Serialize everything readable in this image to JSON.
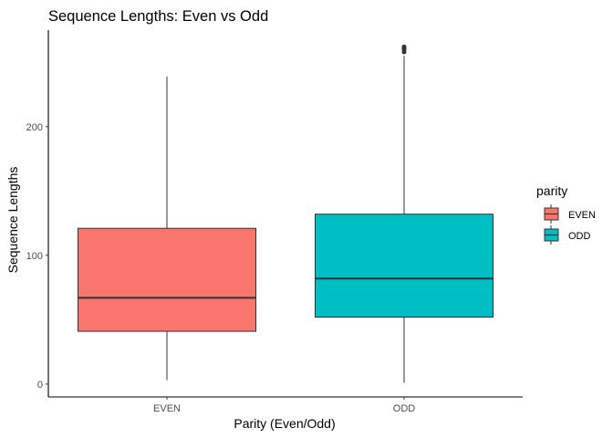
{
  "chart_data": {
    "type": "boxplot",
    "title": "Sequence Lengths: Even vs Odd",
    "xlabel": "Parity (Even/Odd)",
    "ylabel": "Sequence Lengths",
    "categories": [
      "EVEN",
      "ODD"
    ],
    "ylim": [
      -10,
      275
    ],
    "yticks": [
      0,
      100,
      200
    ],
    "grid": false,
    "legend": {
      "title": "parity",
      "position": "right",
      "entries": [
        {
          "label": "EVEN",
          "color": "#F8766D"
        },
        {
          "label": "ODD",
          "color": "#00BFC4"
        }
      ]
    },
    "series": [
      {
        "category": "EVEN",
        "color": "#F8766D",
        "whisker_low": 3,
        "q1": 41,
        "median": 67,
        "q3": 121,
        "whisker_high": 239,
        "outliers": []
      },
      {
        "category": "ODD",
        "color": "#00BFC4",
        "whisker_low": 1,
        "q1": 52,
        "median": 82,
        "q3": 132,
        "whisker_high": 255,
        "outliers": [
          258,
          260,
          261,
          262
        ]
      }
    ]
  }
}
